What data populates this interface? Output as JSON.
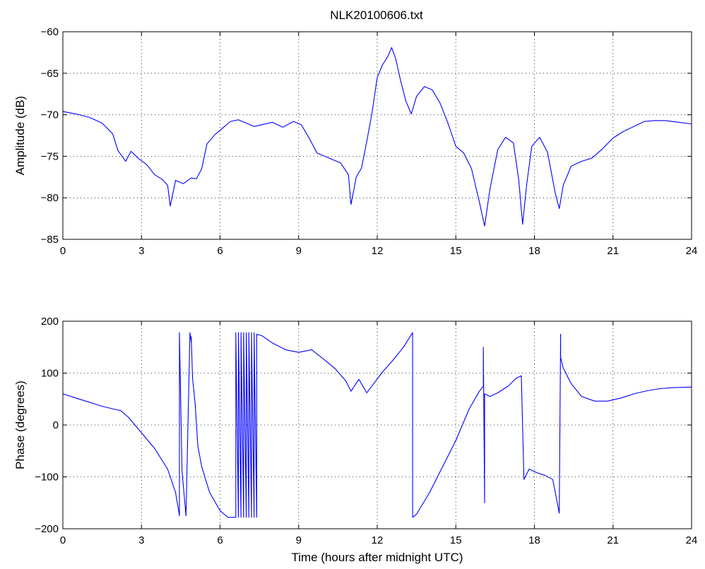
{
  "figure": {
    "title": "NLK20100606.txt"
  },
  "colors": {
    "trace": "#0000ff",
    "axes": "#000000",
    "background": "#ffffff"
  },
  "chart_data": [
    {
      "type": "line",
      "title": "NLK20100606.txt",
      "xlabel": "",
      "ylabel": "Amplitude (dB)",
      "xlim": [
        0,
        24
      ],
      "ylim": [
        -85,
        -60
      ],
      "xticks": [
        0,
        3,
        6,
        9,
        12,
        15,
        18,
        21,
        24
      ],
      "yticks": [
        -85,
        -80,
        -75,
        -70,
        -65,
        -60
      ],
      "xtick_labels": [
        "0",
        "3",
        "6",
        "9",
        "12",
        "15",
        "18",
        "21",
        "24"
      ],
      "ytick_labels": [
        "−85",
        "−80",
        "−75",
        "−70",
        "−65",
        "−60"
      ],
      "grid": true,
      "series": [
        {
          "x": [
            0,
            0.5,
            1.0,
            1.5,
            1.9,
            2.1,
            2.4,
            2.6,
            2.9,
            3.2,
            3.5,
            3.8,
            4.0,
            4.1,
            4.3,
            4.6,
            4.9,
            5.1,
            5.3,
            5.5,
            5.8,
            6.1,
            6.4,
            6.7,
            7.0,
            7.3,
            7.6,
            8.0,
            8.4,
            8.8,
            9.1,
            9.4,
            9.7,
            10.0,
            10.3,
            10.6,
            10.9,
            11.0,
            11.2,
            11.4,
            11.6,
            11.8,
            12.0,
            12.2,
            12.4,
            12.55,
            12.7,
            12.9,
            13.1,
            13.3,
            13.5,
            13.8,
            14.1,
            14.4,
            14.7,
            15.0,
            15.3,
            15.6,
            15.9,
            16.1,
            16.3,
            16.6,
            16.9,
            17.2,
            17.4,
            17.55,
            17.7,
            17.9,
            18.2,
            18.5,
            18.8,
            18.95,
            19.1,
            19.4,
            19.8,
            20.2,
            20.6,
            21.0,
            21.4,
            21.8,
            22.2,
            22.6,
            23.0,
            23.5,
            24.0
          ],
          "values": [
            -69.6,
            -69.9,
            -70.3,
            -71.0,
            -72.3,
            -74.3,
            -75.6,
            -74.4,
            -75.3,
            -76.0,
            -77.2,
            -77.8,
            -78.5,
            -81.0,
            -77.9,
            -78.3,
            -77.6,
            -77.7,
            -76.5,
            -73.5,
            -72.4,
            -71.6,
            -70.8,
            -70.6,
            -71.0,
            -71.4,
            -71.2,
            -70.9,
            -71.5,
            -70.8,
            -71.2,
            -72.8,
            -74.6,
            -75.0,
            -75.4,
            -75.8,
            -77.2,
            -80.8,
            -77.5,
            -76.4,
            -73.2,
            -69.8,
            -65.5,
            -64.0,
            -63.0,
            -61.9,
            -63.2,
            -66.0,
            -68.4,
            -69.9,
            -67.8,
            -66.6,
            -67.0,
            -68.6,
            -71.0,
            -73.8,
            -74.6,
            -76.5,
            -80.5,
            -83.4,
            -79.0,
            -74.2,
            -72.7,
            -73.4,
            -77.8,
            -83.2,
            -78.5,
            -73.8,
            -72.7,
            -74.5,
            -79.5,
            -81.3,
            -78.5,
            -76.2,
            -75.6,
            -75.2,
            -74.1,
            -72.8,
            -72.0,
            -71.4,
            -70.8,
            -70.7,
            -70.7,
            -70.9,
            -71.1
          ]
        }
      ]
    },
    {
      "type": "line",
      "title": "",
      "xlabel": "Time (hours after midnight UTC)",
      "ylabel": "Phase (degrees)",
      "xlim": [
        0,
        24
      ],
      "ylim": [
        -200,
        200
      ],
      "xticks": [
        0,
        3,
        6,
        9,
        12,
        15,
        18,
        21,
        24
      ],
      "yticks": [
        -200,
        -100,
        0,
        100,
        200
      ],
      "xtick_labels": [
        "0",
        "3",
        "6",
        "9",
        "12",
        "15",
        "18",
        "21",
        "24"
      ],
      "ytick_labels": [
        "−200",
        "−100",
        "0",
        "100",
        "200"
      ],
      "grid": true,
      "series": [
        {
          "x": [
            0,
            0.5,
            1.0,
            1.5,
            2.0,
            2.2,
            2.5,
            3.0,
            3.5,
            4.0,
            4.3,
            4.45,
            4.45,
            4.55,
            4.7,
            4.85,
            4.9,
            4.9,
            4.95,
            5.05,
            5.15,
            5.3,
            5.6,
            6.0,
            6.3,
            6.6,
            6.6,
            6.7,
            6.7,
            6.8,
            6.8,
            6.9,
            6.9,
            7.0,
            7.0,
            7.1,
            7.1,
            7.2,
            7.2,
            7.3,
            7.3,
            7.4,
            7.4,
            7.6,
            8.0,
            8.5,
            9.0,
            9.5,
            10.0,
            10.4,
            10.8,
            11.0,
            11.3,
            11.6,
            11.9,
            12.2,
            12.6,
            13.0,
            13.35,
            13.35,
            13.5,
            14.0,
            14.5,
            15.0,
            15.5,
            15.9,
            16.05,
            16.05,
            16.1,
            16.1,
            16.3,
            16.6,
            17.0,
            17.3,
            17.5,
            17.6,
            17.8,
            18.1,
            18.4,
            18.7,
            18.95,
            19.0,
            19.0,
            19.1,
            19.4,
            19.8,
            20.3,
            20.8,
            21.3,
            21.8,
            22.3,
            22.8,
            23.3,
            24.0
          ],
          "values": [
            60,
            52,
            44,
            36,
            30,
            28,
            15,
            -15,
            -45,
            -85,
            -130,
            -175,
            178,
            -90,
            -175,
            178,
            160,
            170,
            90,
            40,
            -40,
            -80,
            -130,
            -165,
            -178,
            -178,
            178,
            -178,
            178,
            -178,
            178,
            -178,
            178,
            -178,
            178,
            -178,
            178,
            -178,
            178,
            -178,
            178,
            -178,
            175,
            172,
            158,
            145,
            140,
            145,
            125,
            108,
            85,
            65,
            88,
            62,
            82,
            102,
            125,
            150,
            178,
            -178,
            -172,
            -130,
            -80,
            -30,
            30,
            65,
            75,
            150,
            -150,
            60,
            55,
            62,
            75,
            90,
            95,
            -105,
            -85,
            -92,
            -97,
            -105,
            -170,
            175,
            130,
            110,
            80,
            55,
            46,
            46,
            52,
            60,
            66,
            70,
            72,
            73
          ]
        }
      ]
    }
  ]
}
